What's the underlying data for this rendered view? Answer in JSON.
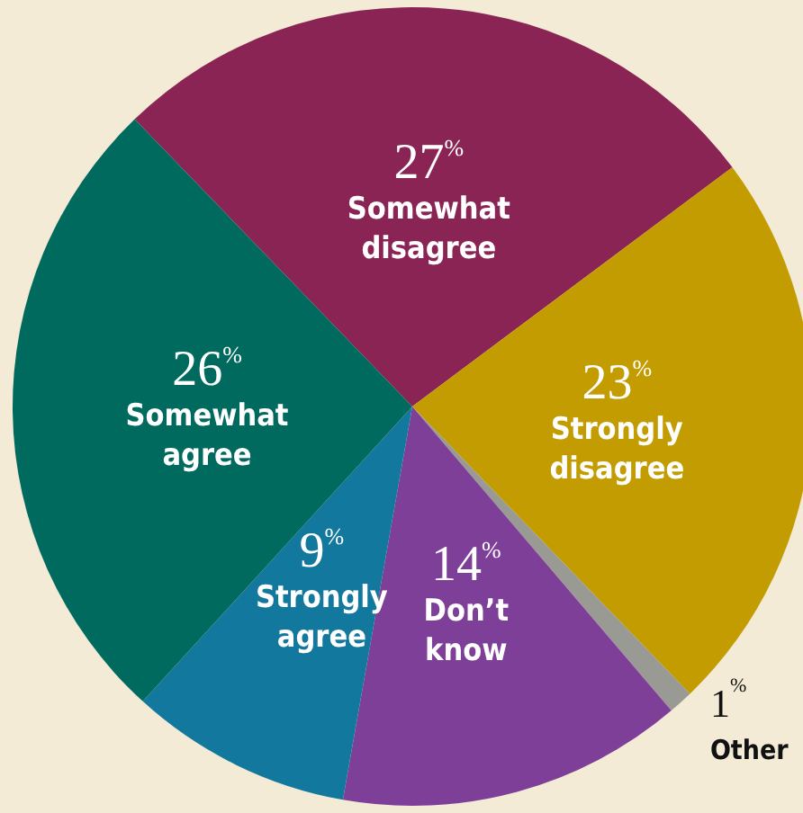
{
  "chart_data": {
    "type": "pie",
    "categories": [
      "Somewhat disagree",
      "Strongly disagree",
      "Other",
      "Don’t know",
      "Strongly agree",
      "Somewhat agree"
    ],
    "values": [
      27,
      23,
      1,
      14,
      9,
      26
    ],
    "value_labels": [
      "27%",
      "23%",
      "1%",
      "14%",
      "9%",
      "26%"
    ],
    "colors": [
      "#8a2455",
      "#c29c00",
      "#9a9a94",
      "#7e3f98",
      "#13789e",
      "#006a5f"
    ]
  }
}
